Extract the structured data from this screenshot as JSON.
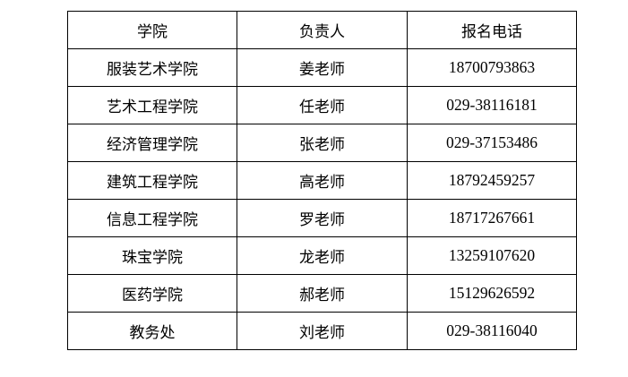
{
  "headers": [
    "学院",
    "负责人",
    "报名电话"
  ],
  "rows": [
    [
      "服装艺术学院",
      "姜老师",
      "18700793863"
    ],
    [
      "艺术工程学院",
      "任老师",
      "029-38116181"
    ],
    [
      "经济管理学院",
      "张老师",
      "029-37153486"
    ],
    [
      "建筑工程学院",
      "高老师",
      "18792459257"
    ],
    [
      "信息工程学院",
      "罗老师",
      "18717267661"
    ],
    [
      "珠宝学院",
      "龙老师",
      "13259107620"
    ],
    [
      "医药学院",
      "郝老师",
      "15129626592"
    ],
    [
      "教务处",
      "刘老师",
      "029-38116040"
    ]
  ]
}
